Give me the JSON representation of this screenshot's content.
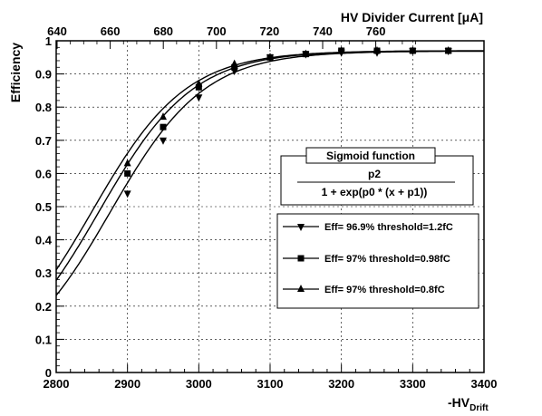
{
  "chart_data": {
    "type": "line",
    "xlabel": "-HV",
    "xlabel_sub": "Drift",
    "ylabel": "Efficiency",
    "top_axis_label": "HV Divider Current [μA]",
    "xlim": [
      2800,
      3400
    ],
    "ylim": [
      0,
      1
    ],
    "x_ticks": [
      2800,
      2900,
      3000,
      3100,
      3200,
      3300,
      3400
    ],
    "y_ticks": [
      0,
      0.1,
      0.2,
      0.3,
      0.4,
      0.5,
      0.6,
      0.7,
      0.8,
      0.9,
      1
    ],
    "y_tick_labels": [
      "0",
      "0.1",
      "0.2",
      "0.3",
      "0.4",
      "0.5",
      "0.6",
      "0.7",
      "0.8",
      "0.9",
      "1"
    ],
    "top_axis_ticks": [
      "640",
      "660",
      "680",
      "700",
      "720",
      "740",
      "760"
    ],
    "grid": true,
    "series": [
      {
        "name": "Eff= 96.9% threshold=1.2fC",
        "marker": "triangle-down",
        "p0": -0.0152,
        "p1": -2876,
        "p2": 0.969,
        "x": [
          2900,
          2950,
          3000,
          3050,
          3100,
          3150,
          3200,
          3250,
          3300,
          3350
        ],
        "y": [
          0.54,
          0.7,
          0.83,
          0.91,
          0.95,
          0.96,
          0.965,
          0.965,
          0.97,
          0.97
        ]
      },
      {
        "name": "Eff= 97% threshold=0.98fC",
        "marker": "square",
        "p0": -0.0152,
        "p1": -2860,
        "p2": 0.97,
        "x": [
          2900,
          2950,
          3000,
          3050,
          3100,
          3150,
          3200,
          3250,
          3300,
          3350
        ],
        "y": [
          0.6,
          0.74,
          0.86,
          0.92,
          0.95,
          0.96,
          0.97,
          0.97,
          0.97,
          0.97
        ]
      },
      {
        "name": "Eff= 97% threshold=0.8fC",
        "marker": "triangle-up",
        "p0": -0.0152,
        "p1": -2850,
        "p2": 0.97,
        "x": [
          2900,
          2950,
          3000,
          3050,
          3100,
          3150,
          3200,
          3250,
          3300,
          3350
        ],
        "y": [
          0.63,
          0.77,
          0.87,
          0.93,
          0.95,
          0.96,
          0.97,
          0.97,
          0.97,
          0.97
        ]
      }
    ],
    "formula_box": {
      "title": "Sigmoid function",
      "numerator": "p2",
      "denominator": "1 + exp(p0 * (x + p1))"
    }
  }
}
